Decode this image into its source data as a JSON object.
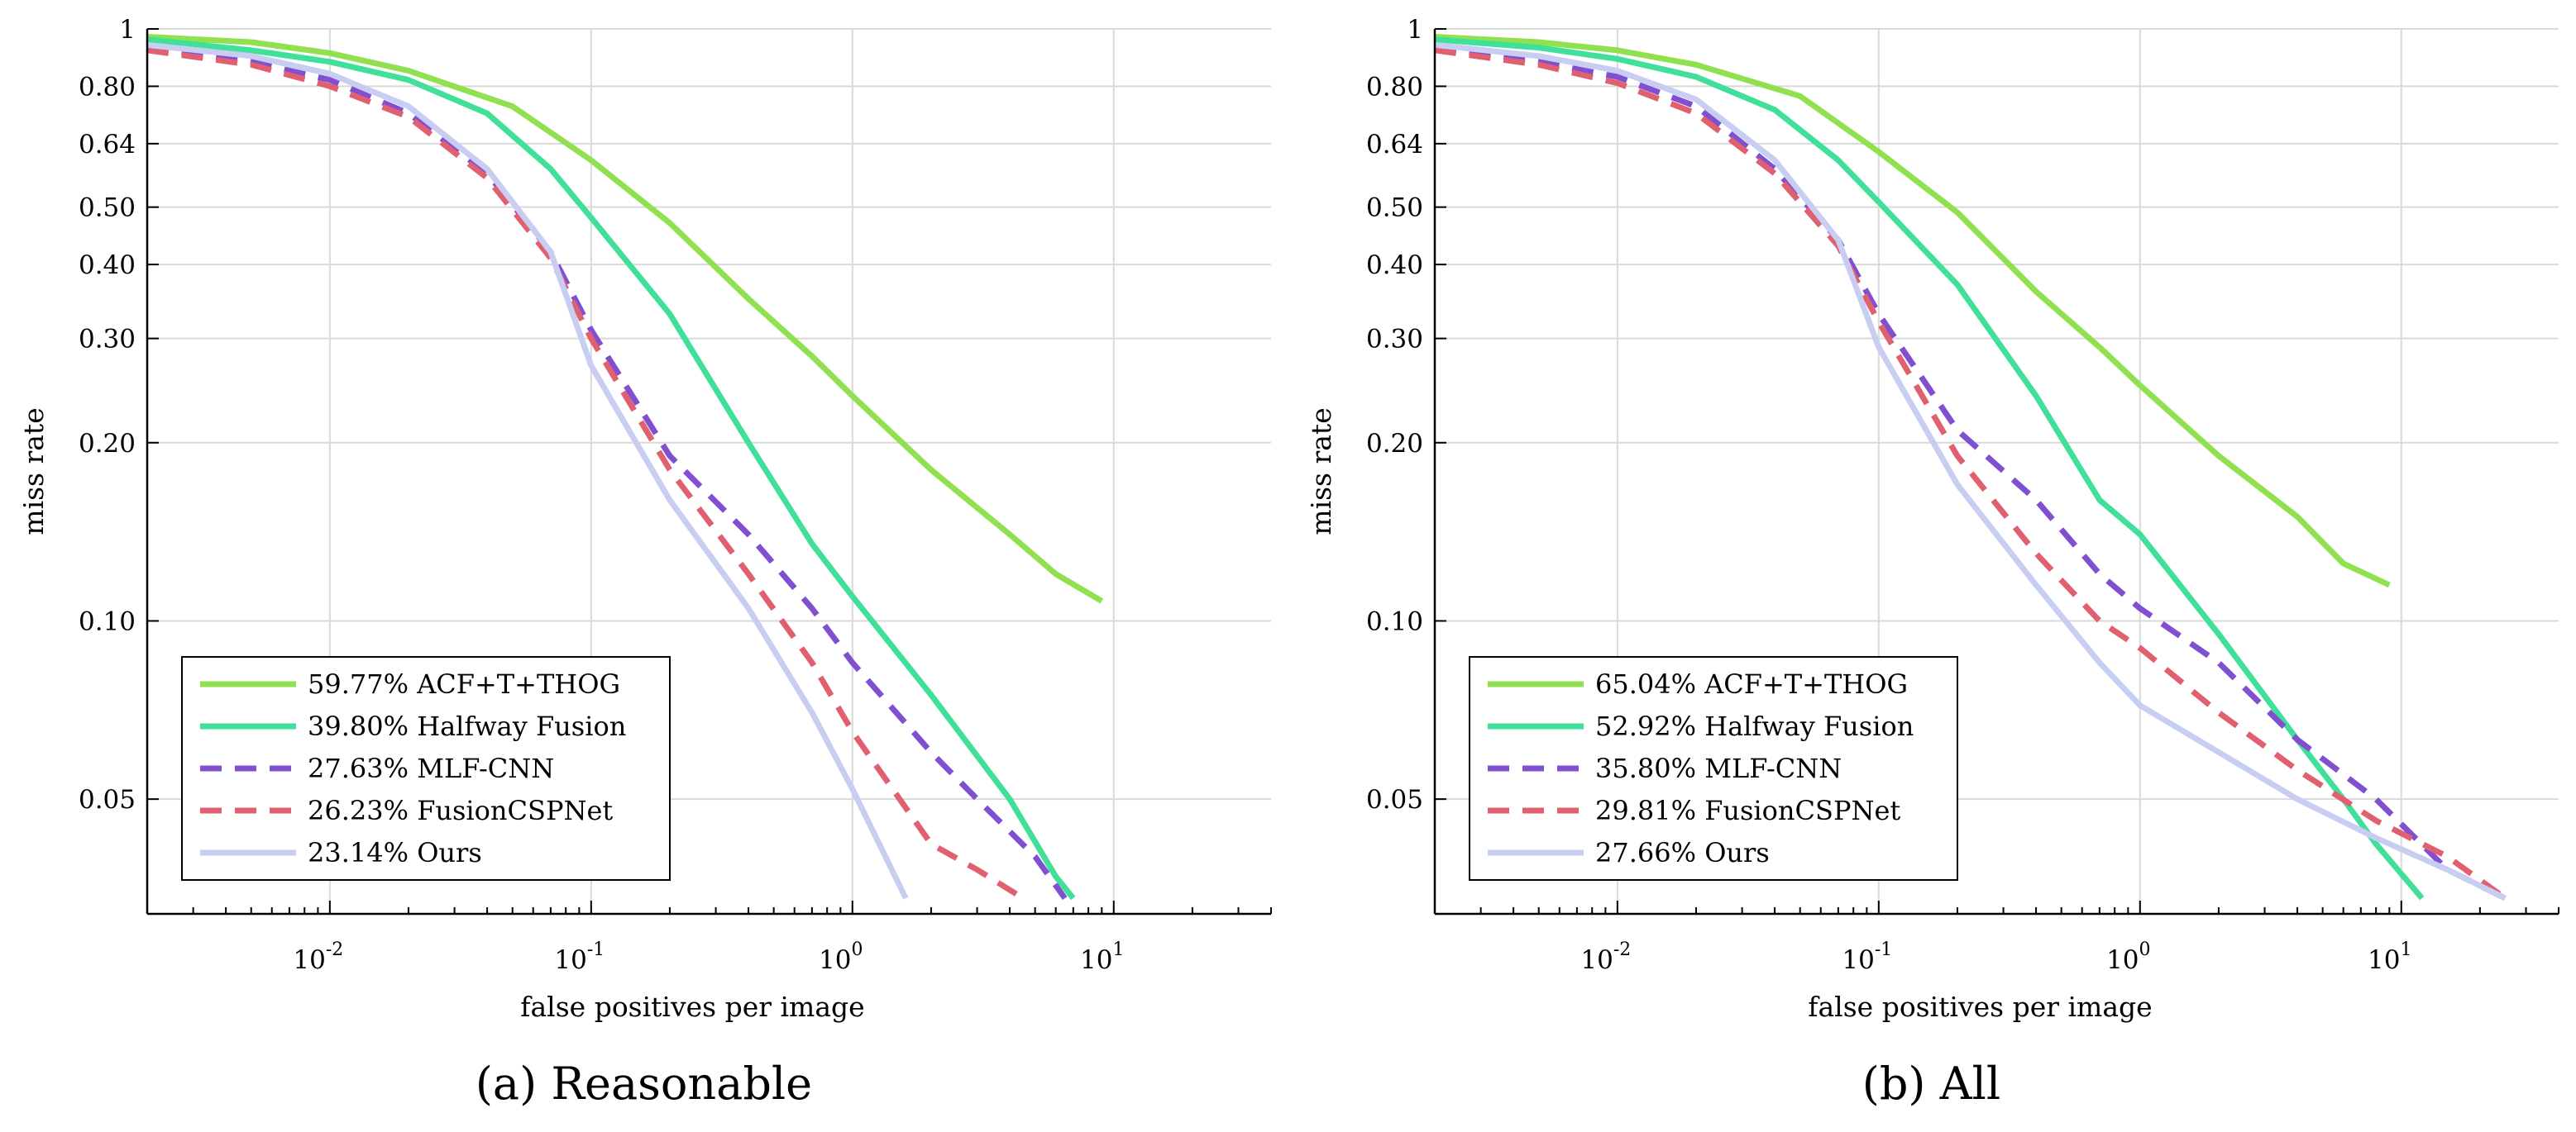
{
  "chart_data": [
    {
      "type": "line",
      "caption": "(a)  Reasonable",
      "xlabel": "false positives per image",
      "ylabel": "miss rate",
      "xscale": "log",
      "yscale": "log",
      "xlim": [
        0.002,
        40
      ],
      "ylim": [
        0.032,
        1
      ],
      "x_ticks": [
        0.01,
        0.1,
        1,
        10
      ],
      "x_tick_labels": [
        {
          "base": "10",
          "exp": "-2"
        },
        {
          "base": "10",
          "exp": "-1"
        },
        {
          "base": "10",
          "exp": "0"
        },
        {
          "base": "10",
          "exp": "1"
        }
      ],
      "y_ticks": [
        0.05,
        0.1,
        0.2,
        0.3,
        0.4,
        0.5,
        0.64,
        0.8,
        1
      ],
      "y_tick_labels": [
        "0.05",
        "0.10",
        "0.20",
        "0.30",
        "0.40",
        "0.50",
        "0.64",
        "0.80",
        "1"
      ],
      "grid": true,
      "legend_position": "bottom-left",
      "series": [
        {
          "name": "59.77% ACF+T+THOG",
          "color": "#90e050",
          "dash": "solid",
          "points": [
            [
              0.002,
              0.97
            ],
            [
              0.005,
              0.95
            ],
            [
              0.01,
              0.91
            ],
            [
              0.02,
              0.85
            ],
            [
              0.05,
              0.74
            ],
            [
              0.1,
              0.6
            ],
            [
              0.2,
              0.47
            ],
            [
              0.4,
              0.35
            ],
            [
              0.7,
              0.28
            ],
            [
              1,
              0.24
            ],
            [
              2,
              0.18
            ],
            [
              4,
              0.14
            ],
            [
              6,
              0.12
            ],
            [
              9,
              0.108
            ]
          ]
        },
        {
          "name": "39.80% Halfway Fusion",
          "color": "#40e09a",
          "dash": "solid",
          "points": [
            [
              0.002,
              0.96
            ],
            [
              0.005,
              0.92
            ],
            [
              0.01,
              0.88
            ],
            [
              0.02,
              0.82
            ],
            [
              0.04,
              0.72
            ],
            [
              0.07,
              0.58
            ],
            [
              0.1,
              0.48
            ],
            [
              0.2,
              0.33
            ],
            [
              0.4,
              0.2
            ],
            [
              0.7,
              0.135
            ],
            [
              1,
              0.11
            ],
            [
              2,
              0.075
            ],
            [
              4,
              0.05
            ],
            [
              6,
              0.037
            ],
            [
              7,
              0.034
            ]
          ]
        },
        {
          "name": "27.63% MLF-CNN",
          "color": "#8050d0",
          "dash": "dashed",
          "points": [
            [
              0.002,
              0.93
            ],
            [
              0.005,
              0.88
            ],
            [
              0.01,
              0.82
            ],
            [
              0.02,
              0.72
            ],
            [
              0.04,
              0.57
            ],
            [
              0.07,
              0.42
            ],
            [
              0.1,
              0.31
            ],
            [
              0.2,
              0.19
            ],
            [
              0.4,
              0.14
            ],
            [
              0.7,
              0.105
            ],
            [
              1,
              0.085
            ],
            [
              2,
              0.06
            ],
            [
              3,
              0.05
            ],
            [
              5,
              0.04
            ],
            [
              6.5,
              0.034
            ]
          ]
        },
        {
          "name": "26.23% FusionCSPNet",
          "color": "#e06070",
          "dash": "dashed",
          "points": [
            [
              0.002,
              0.92
            ],
            [
              0.005,
              0.87
            ],
            [
              0.01,
              0.8
            ],
            [
              0.02,
              0.71
            ],
            [
              0.04,
              0.56
            ],
            [
              0.07,
              0.41
            ],
            [
              0.1,
              0.3
            ],
            [
              0.2,
              0.18
            ],
            [
              0.4,
              0.12
            ],
            [
              0.7,
              0.085
            ],
            [
              1,
              0.065
            ],
            [
              2,
              0.042
            ],
            [
              3,
              0.038
            ],
            [
              4.5,
              0.034
            ]
          ]
        },
        {
          "name": "23.14% Ours",
          "color": "#c8cdf2",
          "dash": "solid",
          "points": [
            [
              0.002,
              0.94
            ],
            [
              0.005,
              0.9
            ],
            [
              0.01,
              0.84
            ],
            [
              0.02,
              0.74
            ],
            [
              0.04,
              0.58
            ],
            [
              0.07,
              0.42
            ],
            [
              0.1,
              0.27
            ],
            [
              0.2,
              0.16
            ],
            [
              0.4,
              0.105
            ],
            [
              0.7,
              0.07
            ],
            [
              1,
              0.052
            ],
            [
              1.6,
              0.034
            ]
          ]
        }
      ]
    },
    {
      "type": "line",
      "caption": "(b)  All",
      "xlabel": "false positives per image",
      "ylabel": "miss rate",
      "xscale": "log",
      "yscale": "log",
      "xlim": [
        0.002,
        40
      ],
      "ylim": [
        0.032,
        1
      ],
      "x_ticks": [
        0.01,
        0.1,
        1,
        10
      ],
      "x_tick_labels": [
        {
          "base": "10",
          "exp": "-2"
        },
        {
          "base": "10",
          "exp": "-1"
        },
        {
          "base": "10",
          "exp": "0"
        },
        {
          "base": "10",
          "exp": "1"
        }
      ],
      "y_ticks": [
        0.05,
        0.1,
        0.2,
        0.3,
        0.4,
        0.5,
        0.64,
        0.8,
        1
      ],
      "y_tick_labels": [
        "0.05",
        "0.10",
        "0.20",
        "0.30",
        "0.40",
        "0.50",
        "0.64",
        "0.80",
        "1"
      ],
      "grid": true,
      "legend_position": "bottom-left",
      "series": [
        {
          "name": "65.04% ACF+T+THOG",
          "color": "#90e050",
          "dash": "solid",
          "points": [
            [
              0.002,
              0.97
            ],
            [
              0.005,
              0.95
            ],
            [
              0.01,
              0.92
            ],
            [
              0.02,
              0.87
            ],
            [
              0.05,
              0.77
            ],
            [
              0.1,
              0.62
            ],
            [
              0.2,
              0.49
            ],
            [
              0.4,
              0.36
            ],
            [
              0.7,
              0.29
            ],
            [
              1,
              0.25
            ],
            [
              2,
              0.19
            ],
            [
              4,
              0.15
            ],
            [
              6,
              0.125
            ],
            [
              9,
              0.115
            ]
          ]
        },
        {
          "name": "52.92% Halfway Fusion",
          "color": "#40e09a",
          "dash": "solid",
          "points": [
            [
              0.002,
              0.96
            ],
            [
              0.005,
              0.93
            ],
            [
              0.01,
              0.89
            ],
            [
              0.02,
              0.83
            ],
            [
              0.04,
              0.73
            ],
            [
              0.07,
              0.6
            ],
            [
              0.1,
              0.51
            ],
            [
              0.2,
              0.37
            ],
            [
              0.4,
              0.24
            ],
            [
              0.7,
              0.16
            ],
            [
              1,
              0.14
            ],
            [
              2,
              0.095
            ],
            [
              4,
              0.063
            ],
            [
              6,
              0.05
            ],
            [
              8,
              0.042
            ],
            [
              12,
              0.034
            ]
          ]
        },
        {
          "name": "35.80% MLF-CNN",
          "color": "#8050d0",
          "dash": "dashed",
          "points": [
            [
              0.002,
              0.93
            ],
            [
              0.005,
              0.88
            ],
            [
              0.01,
              0.83
            ],
            [
              0.02,
              0.74
            ],
            [
              0.04,
              0.58
            ],
            [
              0.07,
              0.44
            ],
            [
              0.1,
              0.33
            ],
            [
              0.2,
              0.21
            ],
            [
              0.4,
              0.16
            ],
            [
              0.7,
              0.12
            ],
            [
              1,
              0.105
            ],
            [
              2,
              0.085
            ],
            [
              4,
              0.063
            ],
            [
              8,
              0.05
            ],
            [
              15,
              0.038
            ],
            [
              25,
              0.034
            ]
          ]
        },
        {
          "name": "29.81% FusionCSPNet",
          "color": "#e06070",
          "dash": "dashed",
          "points": [
            [
              0.002,
              0.92
            ],
            [
              0.005,
              0.87
            ],
            [
              0.01,
              0.81
            ],
            [
              0.02,
              0.72
            ],
            [
              0.04,
              0.57
            ],
            [
              0.07,
              0.43
            ],
            [
              0.1,
              0.32
            ],
            [
              0.2,
              0.19
            ],
            [
              0.4,
              0.13
            ],
            [
              0.7,
              0.1
            ],
            [
              1,
              0.09
            ],
            [
              2,
              0.07
            ],
            [
              4,
              0.056
            ],
            [
              8,
              0.046
            ],
            [
              15,
              0.04
            ],
            [
              25,
              0.034
            ]
          ]
        },
        {
          "name": "27.66% Ours",
          "color": "#c8cdf2",
          "dash": "solid",
          "points": [
            [
              0.002,
              0.94
            ],
            [
              0.005,
              0.9
            ],
            [
              0.01,
              0.85
            ],
            [
              0.02,
              0.76
            ],
            [
              0.04,
              0.6
            ],
            [
              0.07,
              0.44
            ],
            [
              0.1,
              0.29
            ],
            [
              0.2,
              0.17
            ],
            [
              0.4,
              0.115
            ],
            [
              0.7,
              0.085
            ],
            [
              1,
              0.072
            ],
            [
              2,
              0.06
            ],
            [
              4,
              0.05
            ],
            [
              8,
              0.043
            ],
            [
              15,
              0.038
            ],
            [
              25,
              0.034
            ]
          ]
        }
      ]
    }
  ]
}
